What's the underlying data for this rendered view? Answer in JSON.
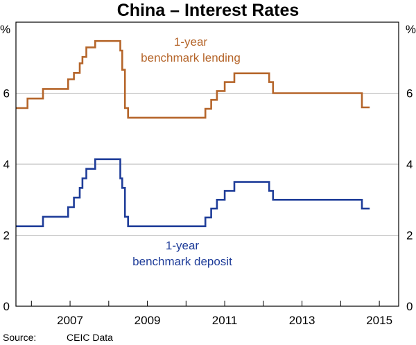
{
  "chart_data": {
    "type": "line",
    "title": "China – Interest Rates",
    "unit_left": "%",
    "unit_right": "%",
    "source_label": "Source:",
    "source_value": "CEIC Data",
    "xlim": [
      2005.6,
      2015.5
    ],
    "ylim": [
      0,
      8
    ],
    "x_ticks": [
      2007,
      2009,
      2011,
      2013,
      2015
    ],
    "y_ticks": [
      0,
      2,
      4,
      6
    ],
    "grid": true,
    "colors": {
      "lending": "#b5652a",
      "deposit": "#1f3d99"
    },
    "series": [
      {
        "key": "lending",
        "label_lines": [
          "1-year",
          "benchmark lending"
        ],
        "color": "#b5652a",
        "points": [
          [
            2005.6,
            5.58
          ],
          [
            2005.9,
            5.58
          ],
          [
            2005.9,
            5.85
          ],
          [
            2006.3,
            5.85
          ],
          [
            2006.3,
            6.12
          ],
          [
            2006.95,
            6.12
          ],
          [
            2006.95,
            6.39
          ],
          [
            2007.1,
            6.39
          ],
          [
            2007.1,
            6.57
          ],
          [
            2007.25,
            6.57
          ],
          [
            2007.25,
            6.84
          ],
          [
            2007.32,
            6.84
          ],
          [
            2007.32,
            7.02
          ],
          [
            2007.42,
            7.02
          ],
          [
            2007.42,
            7.29
          ],
          [
            2007.65,
            7.29
          ],
          [
            2007.65,
            7.47
          ],
          [
            2008.3,
            7.47
          ],
          [
            2008.3,
            7.2
          ],
          [
            2008.35,
            7.2
          ],
          [
            2008.35,
            6.66
          ],
          [
            2008.42,
            6.66
          ],
          [
            2008.42,
            5.58
          ],
          [
            2008.5,
            5.58
          ],
          [
            2008.5,
            5.31
          ],
          [
            2010.5,
            5.31
          ],
          [
            2010.5,
            5.56
          ],
          [
            2010.65,
            5.56
          ],
          [
            2010.65,
            5.81
          ],
          [
            2010.8,
            5.81
          ],
          [
            2010.8,
            6.06
          ],
          [
            2011.0,
            6.06
          ],
          [
            2011.0,
            6.31
          ],
          [
            2011.25,
            6.31
          ],
          [
            2011.25,
            6.56
          ],
          [
            2012.15,
            6.56
          ],
          [
            2012.15,
            6.31
          ],
          [
            2012.25,
            6.31
          ],
          [
            2012.25,
            6.0
          ],
          [
            2014.55,
            6.0
          ],
          [
            2014.55,
            5.6
          ],
          [
            2014.75,
            5.6
          ]
        ]
      },
      {
        "key": "deposit",
        "label_lines": [
          "1-year",
          "benchmark deposit"
        ],
        "color": "#1f3d99",
        "points": [
          [
            2005.6,
            2.25
          ],
          [
            2006.3,
            2.25
          ],
          [
            2006.3,
            2.52
          ],
          [
            2006.95,
            2.52
          ],
          [
            2006.95,
            2.79
          ],
          [
            2007.1,
            2.79
          ],
          [
            2007.1,
            3.06
          ],
          [
            2007.25,
            3.06
          ],
          [
            2007.25,
            3.33
          ],
          [
            2007.32,
            3.33
          ],
          [
            2007.32,
            3.6
          ],
          [
            2007.42,
            3.6
          ],
          [
            2007.42,
            3.87
          ],
          [
            2007.65,
            3.87
          ],
          [
            2007.65,
            4.14
          ],
          [
            2008.3,
            4.14
          ],
          [
            2008.3,
            3.6
          ],
          [
            2008.35,
            3.6
          ],
          [
            2008.35,
            3.33
          ],
          [
            2008.42,
            3.33
          ],
          [
            2008.42,
            2.52
          ],
          [
            2008.5,
            2.52
          ],
          [
            2008.5,
            2.25
          ],
          [
            2010.5,
            2.25
          ],
          [
            2010.5,
            2.5
          ],
          [
            2010.65,
            2.5
          ],
          [
            2010.65,
            2.75
          ],
          [
            2010.8,
            2.75
          ],
          [
            2010.8,
            3.0
          ],
          [
            2011.0,
            3.0
          ],
          [
            2011.0,
            3.25
          ],
          [
            2011.25,
            3.25
          ],
          [
            2011.25,
            3.5
          ],
          [
            2012.15,
            3.5
          ],
          [
            2012.15,
            3.25
          ],
          [
            2012.25,
            3.25
          ],
          [
            2012.25,
            3.0
          ],
          [
            2014.55,
            3.0
          ],
          [
            2014.55,
            2.75
          ],
          [
            2014.75,
            2.75
          ]
        ]
      }
    ]
  }
}
